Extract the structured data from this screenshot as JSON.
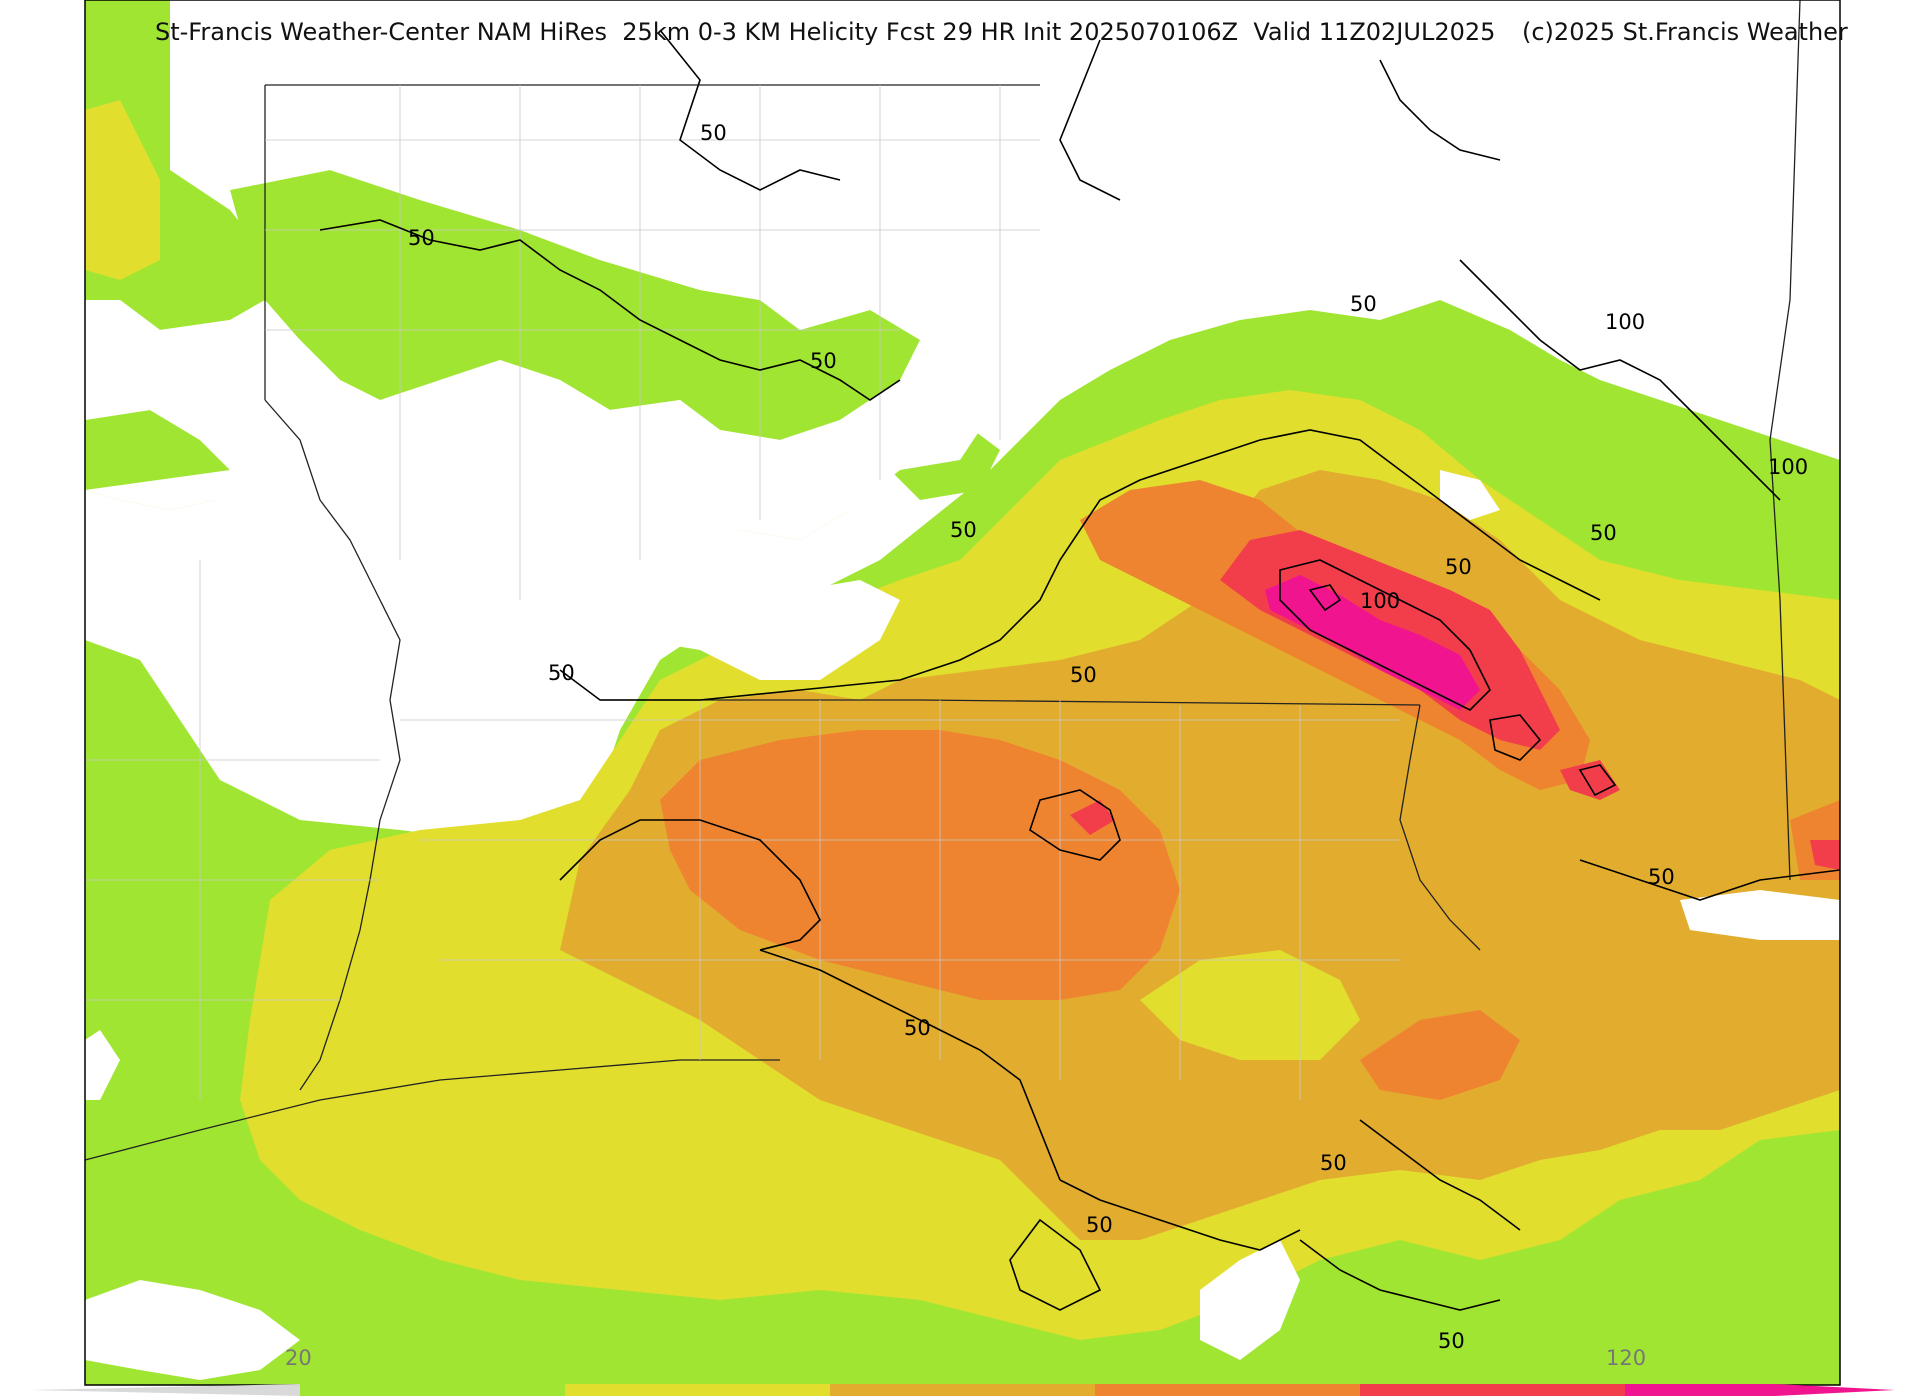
{
  "header": {
    "title": "St-Francis Weather-Center NAM HiRes  25km 0-3 KM Helicity Fcst 29 HR Init 2025070106Z  Valid 11Z02JUL2025",
    "copyright": "(c)2025 St.Francis Weather"
  },
  "colorbar": {
    "min_label": "20",
    "max_label": "120",
    "colors": [
      "#a1e533",
      "#e1de2e",
      "#e2ad2e",
      "#ef8430",
      "#f23e4b",
      "#f0148e"
    ]
  },
  "contour_labels": [
    "50",
    "100"
  ],
  "colors": {
    "green": "#a1e533",
    "yellow": "#e1de2e",
    "amber": "#e2ad2e",
    "orange": "#ef8430",
    "red": "#f23e4b",
    "magenta": "#f0148e"
  }
}
